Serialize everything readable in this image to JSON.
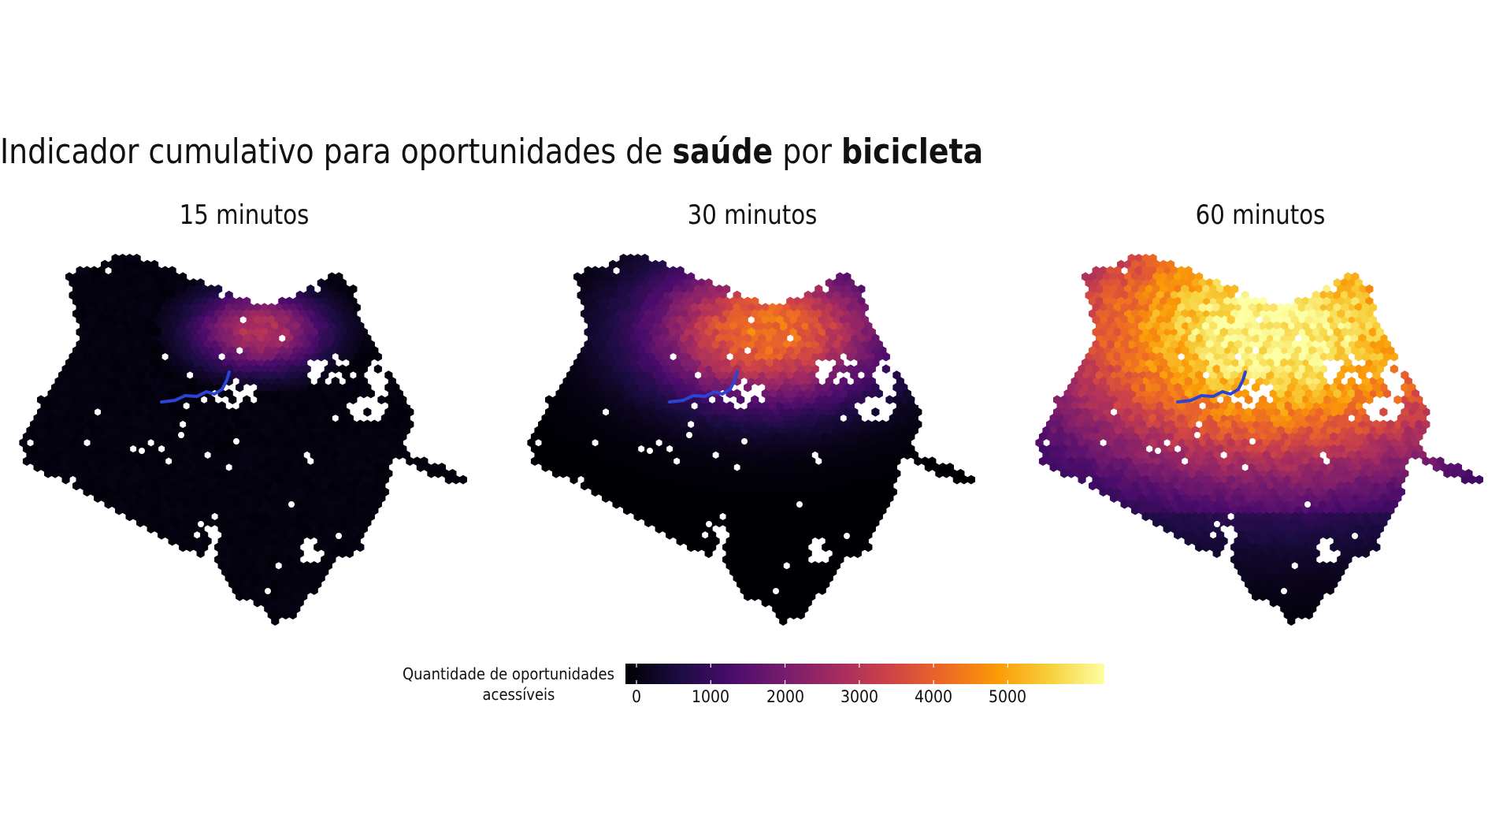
{
  "title": {
    "part1": "Indicador cumulativo para oportunidades de ",
    "bold1": "saúde",
    "part2": " por ",
    "bold2": "bicicleta"
  },
  "panels": [
    {
      "title": "15 minutos",
      "peak_value": 3100
    },
    {
      "title": "30 minutos",
      "peak_value": 4400
    },
    {
      "title": "60 minutos",
      "peak_value": 6300
    }
  ],
  "legend": {
    "title_line1": "Quantidade de oportunidades",
    "title_line2": "acessíveis",
    "ticks": [
      "0",
      "1000",
      "2000",
      "3000",
      "4000",
      "5000"
    ],
    "range": [
      0,
      6300
    ],
    "palette": "inferno",
    "stops": [
      "#000004",
      "#1b0c41",
      "#4a0c6b",
      "#781c6d",
      "#a52c60",
      "#cf4446",
      "#ed6925",
      "#fb9b06",
      "#f7d13d",
      "#fcffa4"
    ]
  },
  "colors": {
    "river_line": "#2a45d6",
    "missing_cell": "#ffffff"
  }
}
